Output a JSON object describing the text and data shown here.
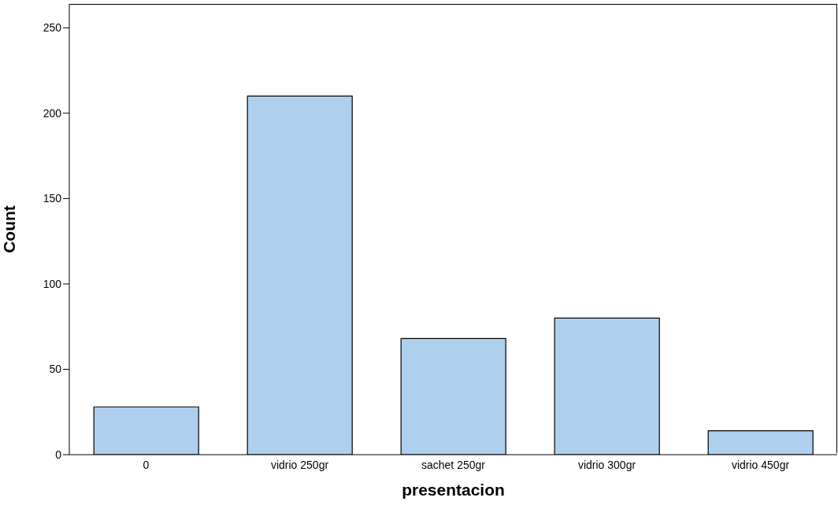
{
  "chart_data": {
    "type": "bar",
    "xlabel": "presentacion",
    "ylabel": "Count",
    "categories": [
      "0",
      "vidrio 250gr",
      "sachet 250gr",
      "vidrio 300gr",
      "vidrio 450gr"
    ],
    "values": [
      28,
      210,
      68,
      80,
      14
    ],
    "color": "#aed0ee",
    "ylim": [
      0,
      264
    ],
    "yticks": [
      0,
      50,
      100,
      150,
      200,
      250
    ]
  }
}
